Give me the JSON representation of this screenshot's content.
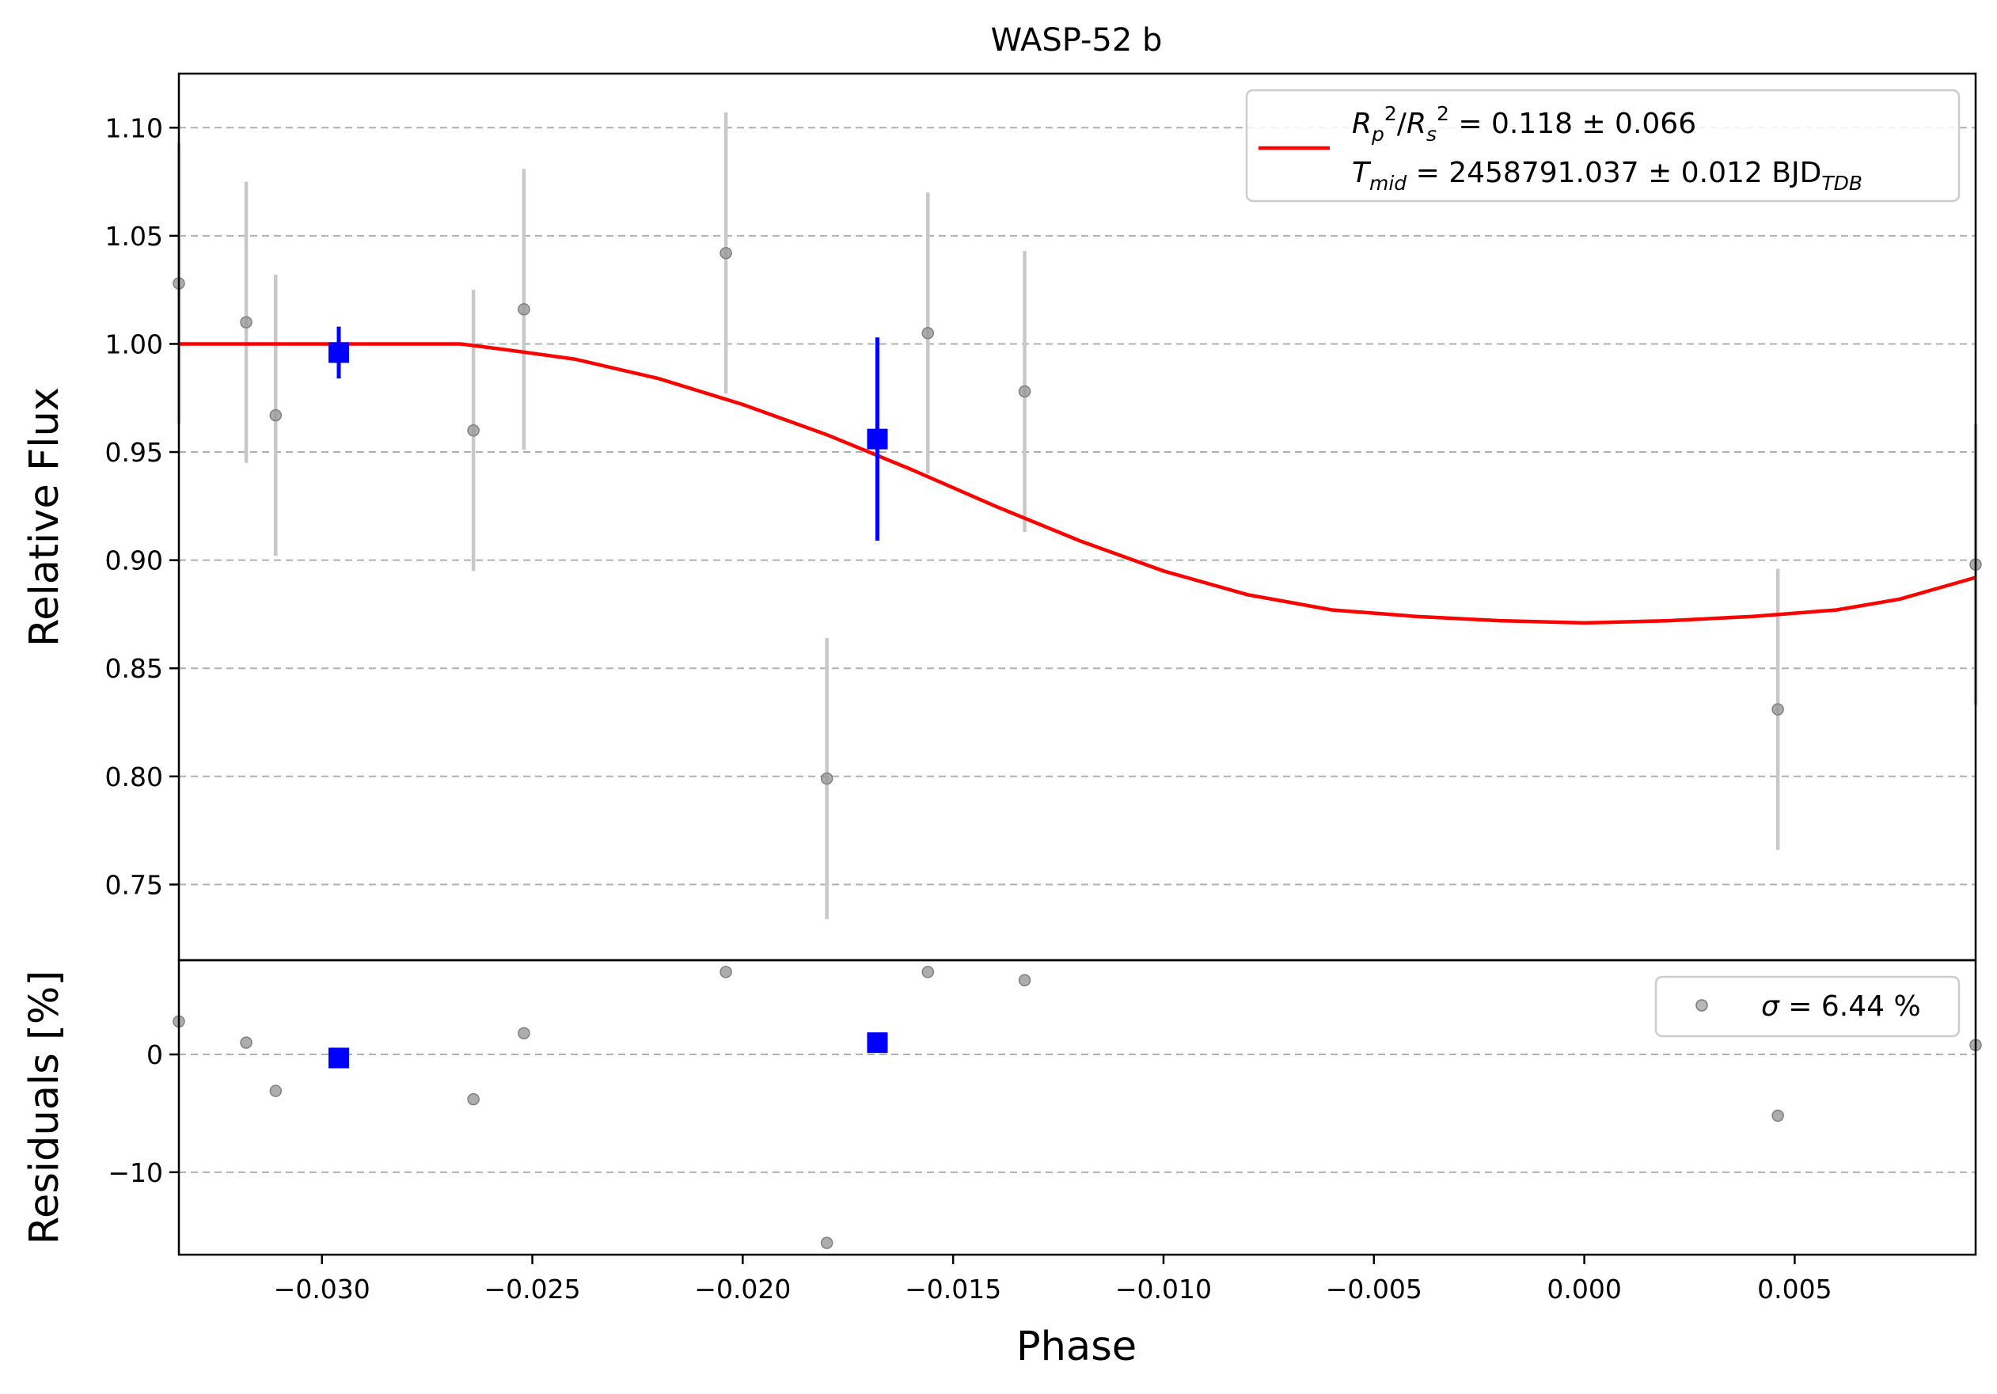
{
  "chart_data": {
    "type": "scatter",
    "title": "WASP-52 b",
    "xlabel": "Phase",
    "xlim": [
      -0.0334,
      0.0093
    ],
    "x_ticks": [
      -0.03,
      -0.025,
      -0.02,
      -0.015,
      -0.01,
      -0.005,
      0.0,
      0.005
    ],
    "x_tick_labels": [
      "−0.030",
      "−0.025",
      "−0.020",
      "−0.015",
      "−0.010",
      "−0.005",
      "0.000",
      "0.005"
    ],
    "grid": "horizontal dashed",
    "colors": {
      "raw": "#999999",
      "raw_errorbar": "#c8c8c8",
      "binned": "#0000ff",
      "model": "#ff0000",
      "grid": "#b0b0b0"
    },
    "panels": {
      "flux": {
        "ylabel": "Relative Flux",
        "ylim": [
          0.715,
          1.125
        ],
        "y_ticks": [
          0.75,
          0.8,
          0.85,
          0.9,
          0.95,
          1.0,
          1.05,
          1.1
        ],
        "y_tick_labels": [
          "0.75",
          "0.80",
          "0.85",
          "0.90",
          "0.95",
          "1.00",
          "1.05",
          "1.10"
        ],
        "legend": {
          "position": "upper right",
          "line1": {
            "base_a": "R",
            "sub_a": "p",
            "sup_a": "2",
            "slash": "/",
            "base_b": "R",
            "sub_b": "s",
            "sup_b": "2",
            "rest": " = 0.118 ± 0.066"
          },
          "line2": {
            "base": "T",
            "sub": "mid",
            "rest": " = 2458791.037 ± 0.012 BJD",
            "suffix_sub": "TDB"
          }
        }
      },
      "residuals": {
        "ylabel": "Residuals [%]",
        "ylim": [
          -17,
          8
        ],
        "y_ticks": [
          -10,
          0
        ],
        "y_tick_labels": [
          "−10",
          "0"
        ],
        "legend": {
          "position": "upper right",
          "sigma_symbol": "σ",
          "rest": " = 6.44 %"
        }
      }
    },
    "series": [
      {
        "kind": "raw",
        "points": [
          {
            "x": -0.0334,
            "y": 1.028,
            "err": 0.065,
            "resid": 2.8
          },
          {
            "x": -0.0318,
            "y": 1.01,
            "err": 0.065,
            "resid": 1.0
          },
          {
            "x": -0.0311,
            "y": 0.967,
            "err": 0.065,
            "resid": -3.1
          },
          {
            "x": -0.0264,
            "y": 0.96,
            "err": 0.065,
            "resid": -3.8
          },
          {
            "x": -0.0252,
            "y": 1.016,
            "err": 0.065,
            "resid": 1.8
          },
          {
            "x": -0.0204,
            "y": 1.042,
            "err": 0.065,
            "resid": 7.0
          },
          {
            "x": -0.018,
            "y": 0.799,
            "err": 0.065,
            "resid": -16.0
          },
          {
            "x": -0.0156,
            "y": 1.005,
            "err": 0.065,
            "resid": 7.0
          },
          {
            "x": -0.0133,
            "y": 0.978,
            "err": 0.065,
            "resid": 6.3
          },
          {
            "x": 0.0046,
            "y": 0.831,
            "err": 0.065,
            "resid": -5.2
          },
          {
            "x": 0.0093,
            "y": 0.898,
            "err": 0.065,
            "resid": 0.8
          }
        ]
      },
      {
        "kind": "binned",
        "points": [
          {
            "x": -0.0296,
            "y": 0.996,
            "err": 0.012,
            "resid": -0.3
          },
          {
            "x": -0.0168,
            "y": 0.956,
            "err": 0.047,
            "resid": 1.0
          }
        ]
      },
      {
        "kind": "model",
        "points": [
          {
            "x": -0.0334,
            "y": 1.0
          },
          {
            "x": -0.0267,
            "y": 1.0
          },
          {
            "x": -0.0255,
            "y": 0.997
          },
          {
            "x": -0.024,
            "y": 0.993
          },
          {
            "x": -0.022,
            "y": 0.984
          },
          {
            "x": -0.02,
            "y": 0.972
          },
          {
            "x": -0.018,
            "y": 0.958
          },
          {
            "x": -0.016,
            "y": 0.942
          },
          {
            "x": -0.014,
            "y": 0.925
          },
          {
            "x": -0.012,
            "y": 0.909
          },
          {
            "x": -0.01,
            "y": 0.895
          },
          {
            "x": -0.008,
            "y": 0.884
          },
          {
            "x": -0.006,
            "y": 0.877
          },
          {
            "x": -0.004,
            "y": 0.874
          },
          {
            "x": -0.002,
            "y": 0.872
          },
          {
            "x": 0.0,
            "y": 0.871
          },
          {
            "x": 0.002,
            "y": 0.872
          },
          {
            "x": 0.004,
            "y": 0.874
          },
          {
            "x": 0.006,
            "y": 0.877
          },
          {
            "x": 0.0075,
            "y": 0.882
          },
          {
            "x": 0.0093,
            "y": 0.892
          }
        ]
      }
    ]
  }
}
